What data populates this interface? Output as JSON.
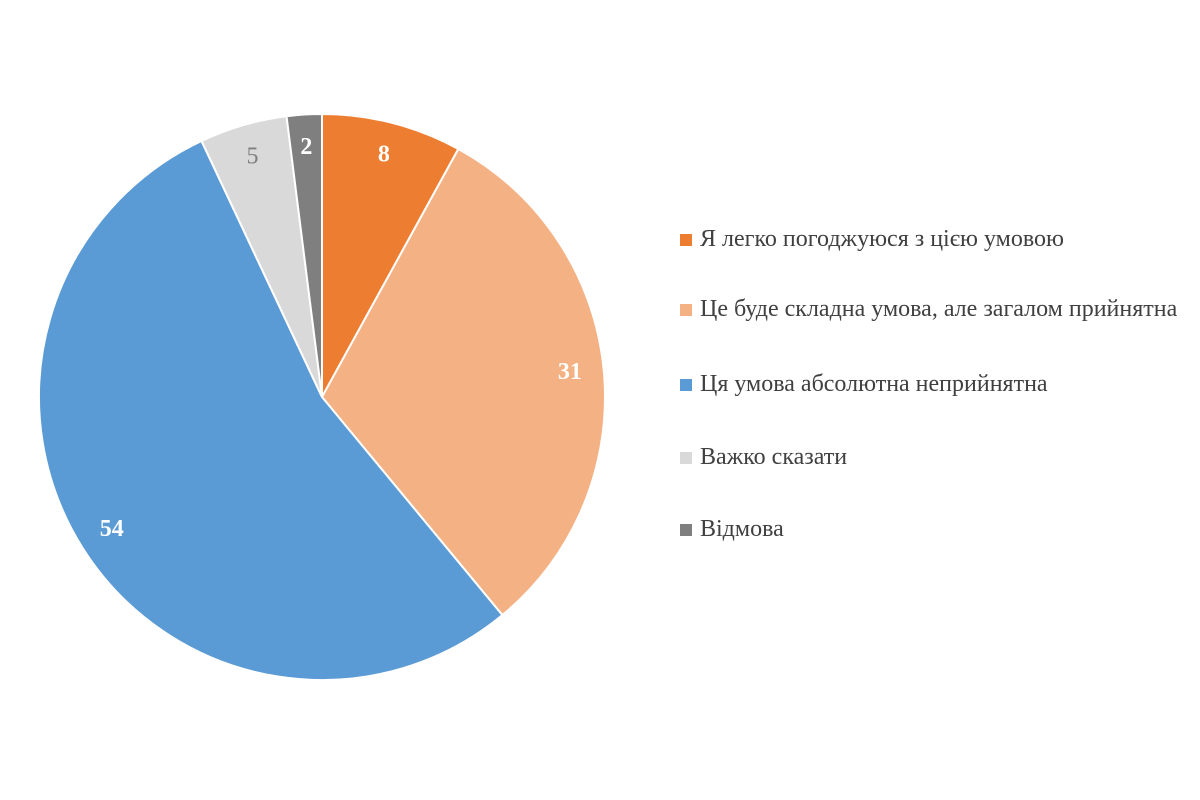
{
  "chart_data": {
    "type": "pie",
    "categories": [
      "Я легко погоджуюся з цією умовою",
      "Це буде складна умова, але загалом прийнятна",
      "Ця умова абсолютна неприйнятна",
      "Важко сказати",
      "Відмова"
    ],
    "values": [
      8,
      31,
      54,
      5,
      2
    ],
    "colors": [
      "#ed7d31",
      "#f4b183",
      "#5b9bd5",
      "#d9d9d9",
      "#7f7f7f"
    ],
    "legend": "right"
  }
}
